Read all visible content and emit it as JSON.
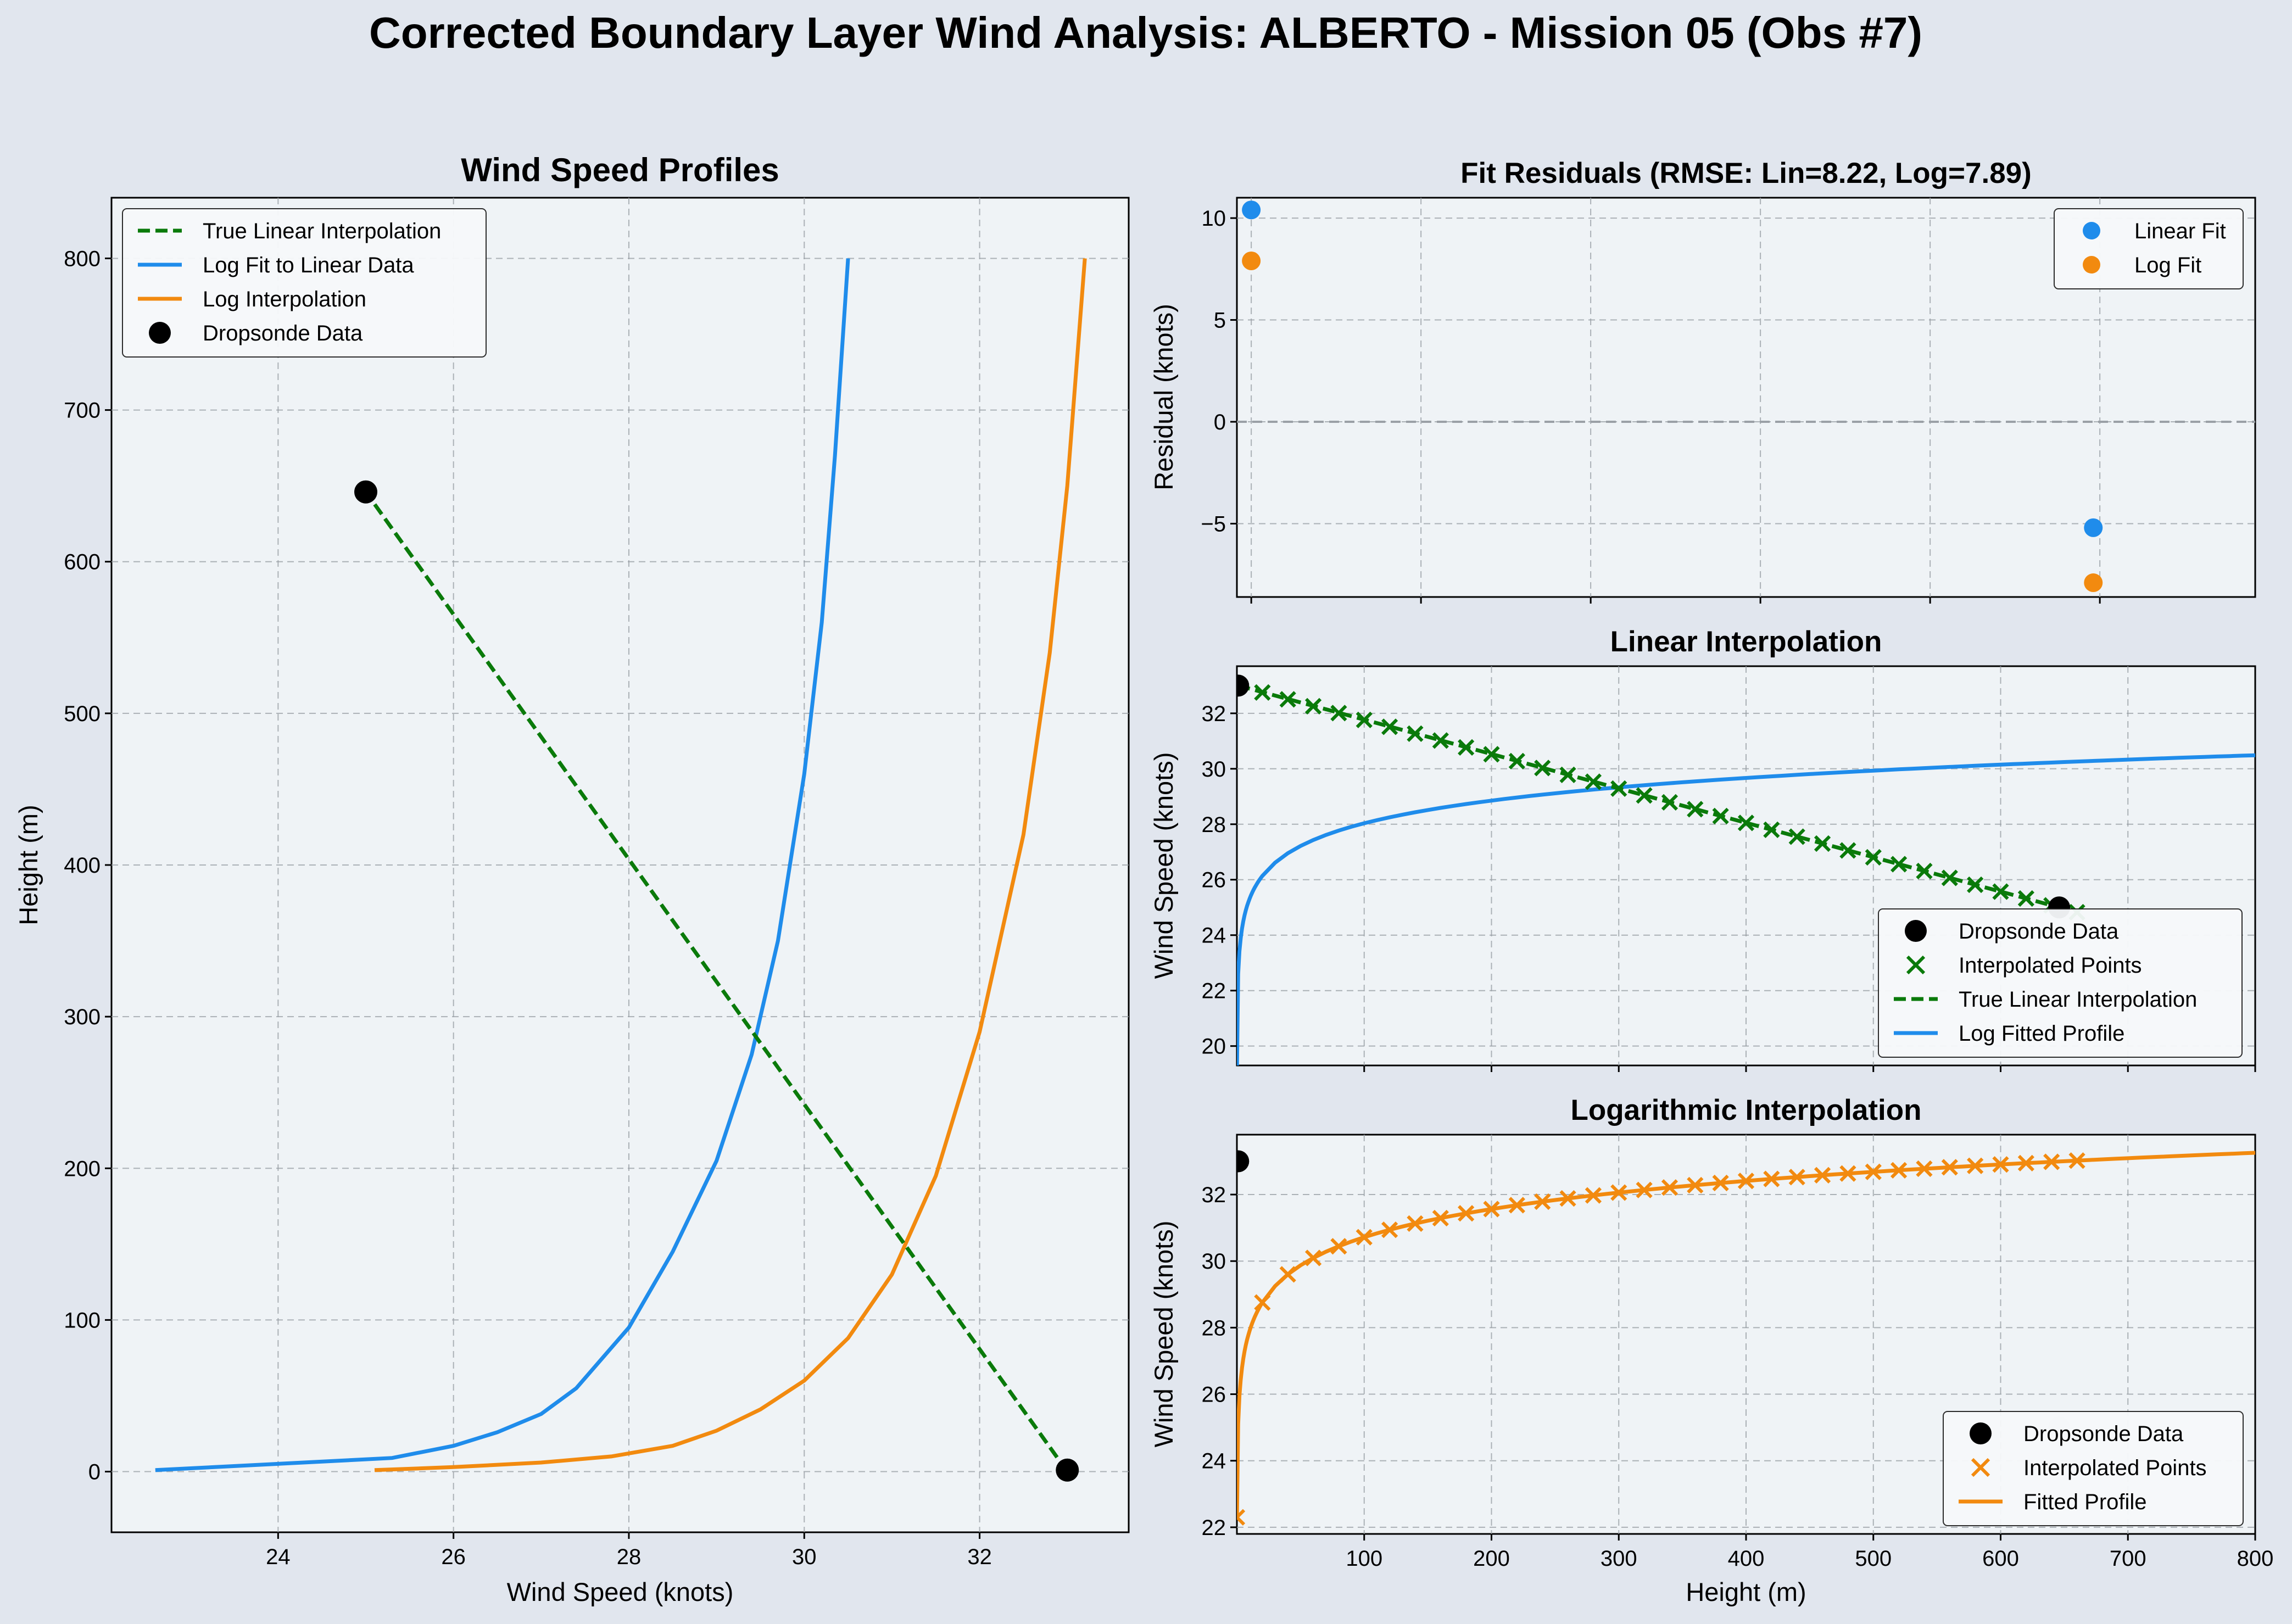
{
  "suptitle": "Corrected Boundary Layer Wind Analysis: ALBERTO - Mission 05 (Obs #7)",
  "colors": {
    "background": "#e1e6ee",
    "plot_bg": "#eff3f6",
    "linear": "#0a7a0a",
    "log_fit": "#1f8ceb",
    "log_interp": "#f28a0f",
    "dropsonde": "#000000",
    "zero_line": "#9aa0a6"
  },
  "chart_data": [
    {
      "id": "profiles",
      "type": "line",
      "title": "Wind Speed Profiles",
      "xlabel": "Wind Speed (knots)",
      "ylabel": "Height (m)",
      "xlim": [
        22.1,
        33.7
      ],
      "ylim": [
        -40,
        840
      ],
      "xticks": [
        24,
        26,
        28,
        30,
        32
      ],
      "yticks": [
        0,
        100,
        200,
        300,
        400,
        500,
        600,
        700,
        800
      ],
      "grid": true,
      "legend_position": "upper-left",
      "series": [
        {
          "name": "True Linear Interpolation",
          "style": "dashed",
          "color": "#0a7a0a",
          "points": [
            [
              33.0,
              0
            ],
            [
              25.0,
              646
            ]
          ]
        },
        {
          "name": "Log Fit to Linear Data",
          "style": "solid",
          "color": "#1f8ceb",
          "points": [
            [
              22.6,
              1
            ],
            [
              25.3,
              9
            ],
            [
              26.0,
              17
            ],
            [
              26.5,
              26
            ],
            [
              27.0,
              38
            ],
            [
              27.4,
              55
            ],
            [
              27.7,
              75
            ],
            [
              28.0,
              95
            ],
            [
              28.5,
              145
            ],
            [
              29.0,
              205
            ],
            [
              29.4,
              275
            ],
            [
              29.7,
              350
            ],
            [
              30.0,
              460
            ],
            [
              30.2,
              560
            ],
            [
              30.35,
              670
            ],
            [
              30.5,
              800
            ]
          ]
        },
        {
          "name": "Log Interpolation",
          "style": "solid",
          "color": "#f28a0f",
          "points": [
            [
              25.1,
              1
            ],
            [
              26.0,
              3
            ],
            [
              27.0,
              6
            ],
            [
              27.8,
              10
            ],
            [
              28.5,
              17
            ],
            [
              29.0,
              27
            ],
            [
              29.5,
              41
            ],
            [
              30.0,
              60
            ],
            [
              30.5,
              88
            ],
            [
              31.0,
              130
            ],
            [
              31.5,
              195
            ],
            [
              32.0,
              290
            ],
            [
              32.5,
              420
            ],
            [
              32.8,
              540
            ],
            [
              33.0,
              650
            ],
            [
              33.2,
              800
            ]
          ]
        },
        {
          "name": "Dropsonde Data",
          "style": "markers",
          "color": "#000000",
          "points": [
            [
              25.0,
              646
            ],
            [
              33.0,
              1
            ]
          ]
        }
      ]
    },
    {
      "id": "residuals",
      "type": "scatter",
      "title": "Fit Residuals (RMSE: Lin=8.22, Log=7.89)",
      "xlabel": "",
      "ylabel": "Residual (knots)",
      "xlim": [
        -10,
        770
      ],
      "ylim": [
        -8.6,
        11
      ],
      "yticks": [
        -5,
        0,
        5,
        10
      ],
      "grid": true,
      "legend_position": "upper-right",
      "series": [
        {
          "name": "Linear Fit",
          "color": "#1f8ceb",
          "points": [
            [
              1,
              10.4
            ],
            [
              646,
              -5.2
            ]
          ]
        },
        {
          "name": "Log Fit",
          "color": "#f28a0f",
          "points": [
            [
              1,
              7.9
            ],
            [
              646,
              -7.9
            ]
          ]
        }
      ]
    },
    {
      "id": "linear_interp",
      "type": "line",
      "title": "Linear Interpolation",
      "xlabel": "",
      "ylabel": "Wind Speed (knots)",
      "xlim": [
        0,
        800
      ],
      "ylim": [
        19.3,
        33.7
      ],
      "yticks": [
        20,
        22,
        24,
        26,
        28,
        30,
        32
      ],
      "grid": true,
      "legend_position": "lower-right",
      "series": [
        {
          "name": "Dropsonde Data",
          "style": "markers",
          "color": "#000000",
          "points": [
            [
              1,
              33.0
            ],
            [
              646,
              25.0
            ]
          ]
        },
        {
          "name": "Interpolated Points",
          "style": "x-markers",
          "color": "#0a7a0a",
          "x_start": 0,
          "x_step": 20,
          "x_end": 660,
          "y_start": 33.0,
          "slope_per_m": -0.012384
        },
        {
          "name": "True Linear Interpolation",
          "style": "dashed",
          "color": "#0a7a0a",
          "points": [
            [
              1,
              33.0
            ],
            [
              646,
              25.0
            ]
          ]
        },
        {
          "name": "Log Fitted Profile",
          "style": "solid",
          "color": "#1f8ceb",
          "log_a": 22.6,
          "log_b": 1.18
        }
      ]
    },
    {
      "id": "log_interp",
      "type": "line",
      "title": "Logarithmic Interpolation",
      "xlabel": "Height (m)",
      "ylabel": "Wind Speed (knots)",
      "xlim": [
        0,
        800
      ],
      "ylim": [
        21.8,
        33.8
      ],
      "xticks": [
        100,
        200,
        300,
        400,
        500,
        600,
        700,
        800
      ],
      "yticks": [
        22,
        24,
        26,
        28,
        30,
        32
      ],
      "grid": true,
      "legend_position": "lower-right",
      "series": [
        {
          "name": "Dropsonde Data",
          "style": "markers",
          "color": "#000000",
          "points": [
            [
              1,
              33.0
            ],
            [
              646,
              25.0
            ]
          ]
        },
        {
          "name": "Interpolated Points",
          "style": "x-markers",
          "color": "#f28a0f",
          "x_start": 0,
          "x_step": 20,
          "x_end": 660,
          "log_a": 25.1,
          "log_b": 1.22
        },
        {
          "name": "Fitted Profile",
          "style": "solid",
          "color": "#f28a0f",
          "log_a": 25.1,
          "log_b": 1.22
        }
      ]
    }
  ]
}
